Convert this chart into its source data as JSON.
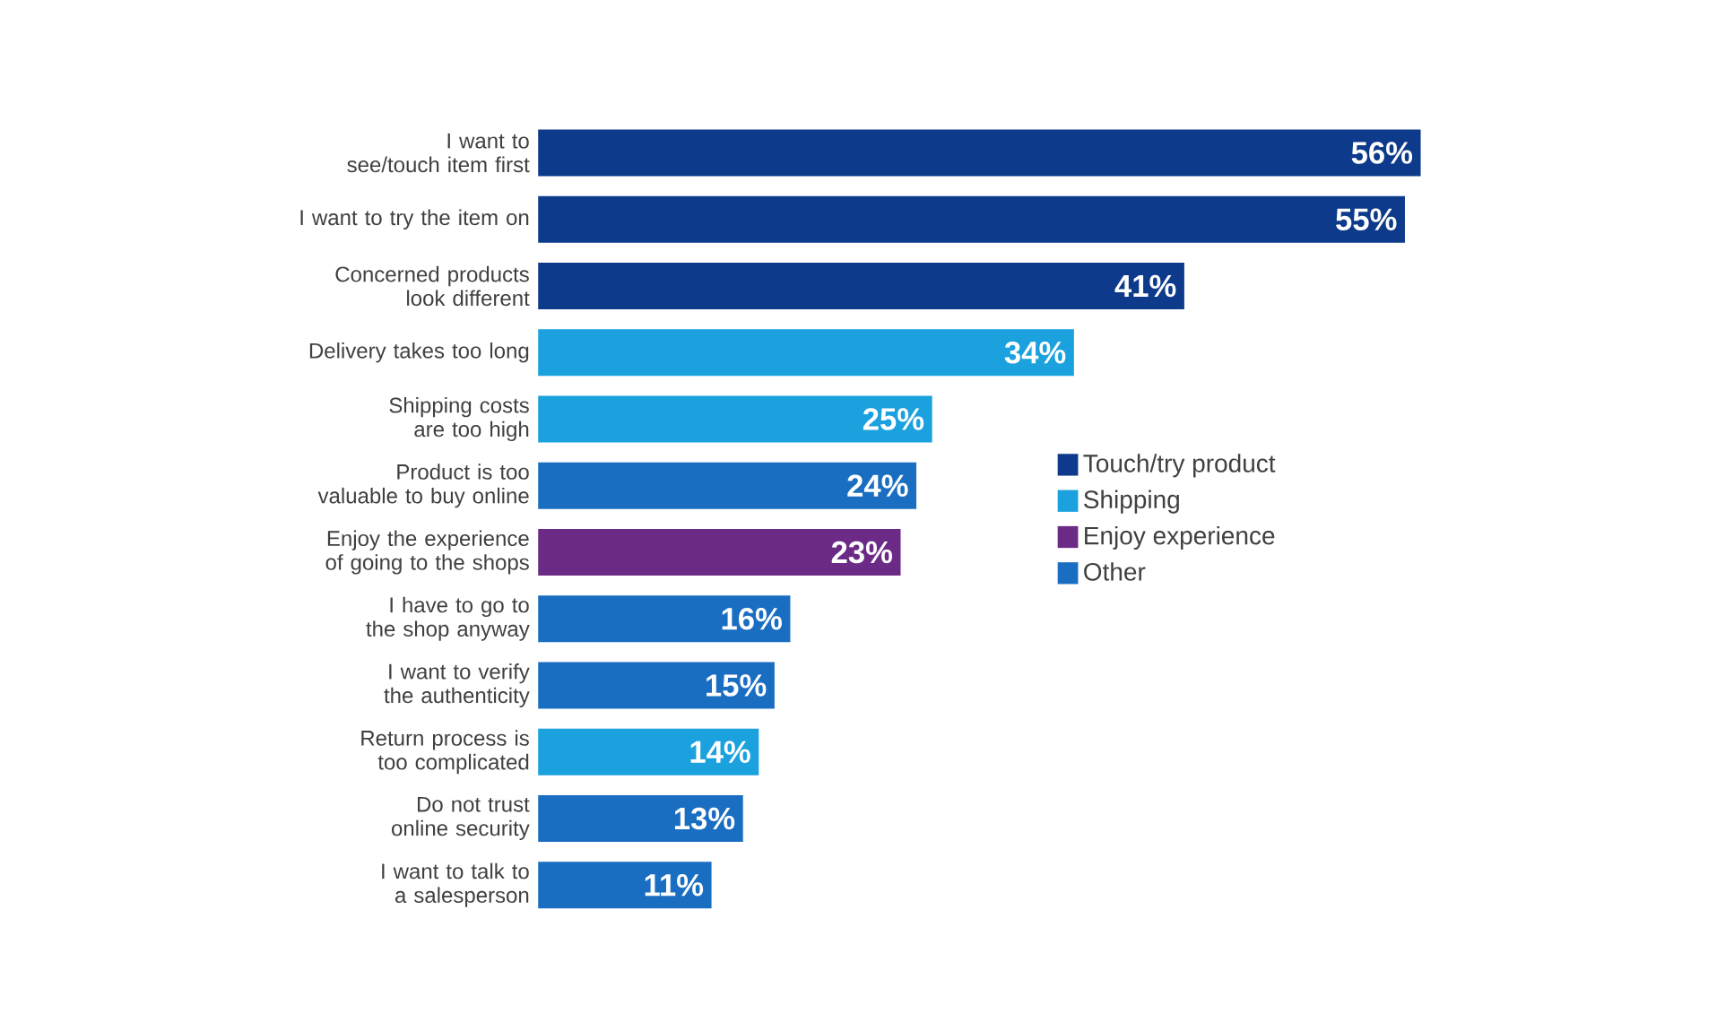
{
  "chart_data": {
    "type": "bar",
    "orientation": "horizontal",
    "categories": [
      "I want to see/touch item first",
      "I want to try the item on",
      "Concerned products look different",
      "Delivery takes too long",
      "Shipping costs are too high",
      "Product is too valuable to buy online",
      "Enjoy the experience of going to the shops",
      "I have to go to the shop anyway",
      "I want to verify the authenticity",
      "Return process is too complicated",
      "Do not trust online security",
      "I want to talk to a salesperson"
    ],
    "series": [
      {
        "name": "Touch/try product",
        "color": "#0d3a8a",
        "values": [
          56,
          55,
          41,
          null,
          null,
          null,
          null,
          null,
          null,
          null,
          null,
          null
        ],
        "value_labels": [
          "56%",
          "55%",
          "41%",
          null,
          null,
          null,
          null,
          null,
          null,
          null,
          null,
          null
        ]
      },
      {
        "name": "Shipping",
        "color": "#1aa1de",
        "values": [
          null,
          null,
          null,
          34,
          25,
          null,
          null,
          null,
          null,
          14,
          null,
          null
        ],
        "value_labels": [
          null,
          null,
          null,
          "34%",
          "25%",
          null,
          null,
          null,
          null,
          "14%",
          null,
          null
        ]
      },
      {
        "name": "Enjoy experience",
        "color": "#6b2a86",
        "values": [
          null,
          null,
          null,
          null,
          null,
          null,
          23,
          null,
          null,
          null,
          null,
          null
        ],
        "value_labels": [
          null,
          null,
          null,
          null,
          null,
          null,
          "23%",
          null,
          null,
          null,
          null,
          null
        ]
      },
      {
        "name": "Other",
        "color": "#1a6ec2",
        "values": [
          null,
          null,
          null,
          null,
          null,
          24,
          null,
          16,
          15,
          null,
          13,
          11
        ],
        "value_labels": [
          null,
          null,
          null,
          null,
          null,
          "24%",
          null,
          "16%",
          "15%",
          null,
          "13%",
          "11%"
        ]
      }
    ],
    "legend": "right"
  }
}
